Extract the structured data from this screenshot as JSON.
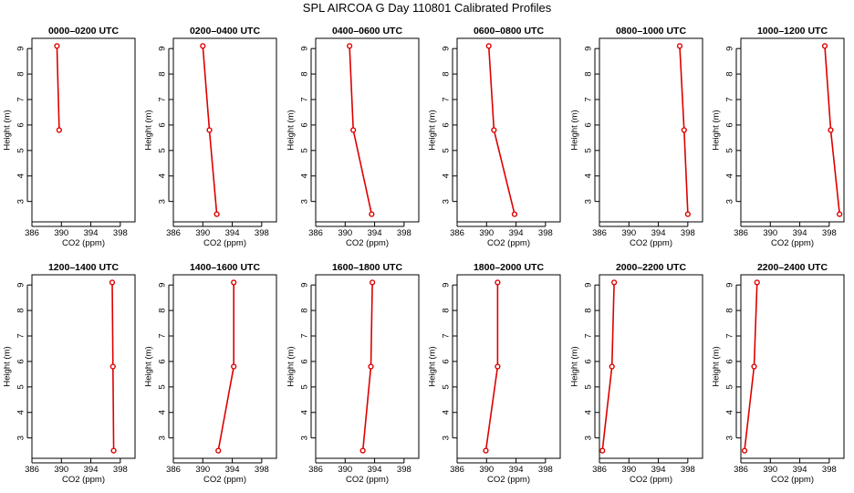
{
  "figure": {
    "title": "SPL AIRCOA G  Day 110801  Calibrated Profiles"
  },
  "colors": {
    "series": "#dd0000",
    "axis": "#000000"
  },
  "chart_data": [
    {
      "type": "line",
      "title": "0000–0200 UTC",
      "xlabel": "CO2 (ppm)",
      "ylabel": "Height (m)",
      "xlim": [
        386,
        400
      ],
      "ylim": [
        2.2,
        9.4
      ],
      "xticks": [
        "386",
        "390",
        "394",
        "398"
      ],
      "yticks": [
        "3",
        "4",
        "5",
        "6",
        "7",
        "8",
        "9"
      ],
      "x": [
        389.4,
        389.7
      ],
      "y": [
        9.1,
        5.8
      ]
    },
    {
      "type": "line",
      "title": "0200–0400 UTC",
      "xlabel": "CO2 (ppm)",
      "ylabel": "Height (m)",
      "xlim": [
        386,
        400
      ],
      "ylim": [
        2.2,
        9.4
      ],
      "xticks": [
        "386",
        "390",
        "394",
        "398"
      ],
      "yticks": [
        "3",
        "4",
        "5",
        "6",
        "7",
        "8",
        "9"
      ],
      "x": [
        390.0,
        390.9,
        391.9
      ],
      "y": [
        9.1,
        5.8,
        2.5
      ]
    },
    {
      "type": "line",
      "title": "0400–0600 UTC",
      "xlabel": "CO2 (ppm)",
      "ylabel": "Height (m)",
      "xlim": [
        386,
        400
      ],
      "ylim": [
        2.2,
        9.4
      ],
      "xticks": [
        "386",
        "390",
        "394",
        "398"
      ],
      "yticks": [
        "3",
        "4",
        "5",
        "6",
        "7",
        "8",
        "9"
      ],
      "x": [
        390.6,
        391.1,
        393.6
      ],
      "y": [
        9.1,
        5.8,
        2.5
      ]
    },
    {
      "type": "line",
      "title": "0600–0800 UTC",
      "xlabel": "CO2 (ppm)",
      "ylabel": "Height (m)",
      "xlim": [
        386,
        400
      ],
      "ylim": [
        2.2,
        9.4
      ],
      "xticks": [
        "386",
        "390",
        "394",
        "398"
      ],
      "yticks": [
        "3",
        "4",
        "5",
        "6",
        "7",
        "8",
        "9"
      ],
      "x": [
        390.3,
        391.0,
        393.8
      ],
      "y": [
        9.1,
        5.8,
        2.5
      ]
    },
    {
      "type": "line",
      "title": "0800–1000 UTC",
      "xlabel": "CO2 (ppm)",
      "ylabel": "Height (m)",
      "xlim": [
        386,
        400
      ],
      "ylim": [
        2.2,
        9.4
      ],
      "xticks": [
        "386",
        "390",
        "394",
        "398"
      ],
      "yticks": [
        "3",
        "4",
        "5",
        "6",
        "7",
        "8",
        "9"
      ],
      "x": [
        396.9,
        397.5,
        398.0
      ],
      "y": [
        9.1,
        5.8,
        2.5
      ]
    },
    {
      "type": "line",
      "title": "1000–1200 UTC",
      "xlabel": "CO2 (ppm)",
      "ylabel": "Height (m)",
      "xlim": [
        386,
        400
      ],
      "ylim": [
        2.2,
        9.4
      ],
      "xticks": [
        "386",
        "390",
        "394",
        "398"
      ],
      "yticks": [
        "3",
        "4",
        "5",
        "6",
        "7",
        "8",
        "9"
      ],
      "x": [
        397.4,
        398.2,
        399.4
      ],
      "y": [
        9.1,
        5.8,
        2.5
      ]
    },
    {
      "type": "line",
      "title": "1200–1400 UTC",
      "xlabel": "CO2 (ppm)",
      "ylabel": "Height (m)",
      "xlim": [
        386,
        400
      ],
      "ylim": [
        2.2,
        9.4
      ],
      "xticks": [
        "386",
        "390",
        "394",
        "398"
      ],
      "yticks": [
        "3",
        "4",
        "5",
        "6",
        "7",
        "8",
        "9"
      ],
      "x": [
        396.9,
        397.0,
        397.1
      ],
      "y": [
        9.1,
        5.8,
        2.5
      ]
    },
    {
      "type": "line",
      "title": "1400–1600 UTC",
      "xlabel": "CO2 (ppm)",
      "ylabel": "Height (m)",
      "xlim": [
        386,
        400
      ],
      "ylim": [
        2.2,
        9.4
      ],
      "xticks": [
        "386",
        "390",
        "394",
        "398"
      ],
      "yticks": [
        "3",
        "4",
        "5",
        "6",
        "7",
        "8",
        "9"
      ],
      "x": [
        394.2,
        394.2,
        392.1
      ],
      "y": [
        9.1,
        5.8,
        2.5
      ]
    },
    {
      "type": "line",
      "title": "1600–1800 UTC",
      "xlabel": "CO2 (ppm)",
      "ylabel": "Height (m)",
      "xlim": [
        386,
        400
      ],
      "ylim": [
        2.2,
        9.4
      ],
      "xticks": [
        "386",
        "390",
        "394",
        "398"
      ],
      "yticks": [
        "3",
        "4",
        "5",
        "6",
        "7",
        "8",
        "9"
      ],
      "x": [
        393.7,
        393.5,
        392.4
      ],
      "y": [
        9.1,
        5.8,
        2.5
      ]
    },
    {
      "type": "line",
      "title": "1800–2000 UTC",
      "xlabel": "CO2 (ppm)",
      "ylabel": "Height (m)",
      "xlim": [
        386,
        400
      ],
      "ylim": [
        2.2,
        9.4
      ],
      "xticks": [
        "386",
        "390",
        "394",
        "398"
      ],
      "yticks": [
        "3",
        "4",
        "5",
        "6",
        "7",
        "8",
        "9"
      ],
      "x": [
        391.5,
        391.5,
        389.9
      ],
      "y": [
        9.1,
        5.8,
        2.5
      ]
    },
    {
      "type": "line",
      "title": "2000–2200 UTC",
      "xlabel": "CO2 (ppm)",
      "ylabel": "Height (m)",
      "xlim": [
        386,
        400
      ],
      "ylim": [
        2.2,
        9.4
      ],
      "xticks": [
        "386",
        "390",
        "394",
        "398"
      ],
      "yticks": [
        "3",
        "4",
        "5",
        "6",
        "7",
        "8",
        "9"
      ],
      "x": [
        388.0,
        387.7,
        386.4
      ],
      "y": [
        9.1,
        5.8,
        2.5
      ]
    },
    {
      "type": "line",
      "title": "2200–2400 UTC",
      "xlabel": "CO2 (ppm)",
      "ylabel": "Height (m)",
      "xlim": [
        386,
        400
      ],
      "ylim": [
        2.2,
        9.4
      ],
      "xticks": [
        "386",
        "390",
        "394",
        "398"
      ],
      "yticks": [
        "3",
        "4",
        "5",
        "6",
        "7",
        "8",
        "9"
      ],
      "x": [
        388.2,
        387.8,
        386.5
      ],
      "y": [
        9.1,
        5.8,
        2.5
      ]
    }
  ]
}
